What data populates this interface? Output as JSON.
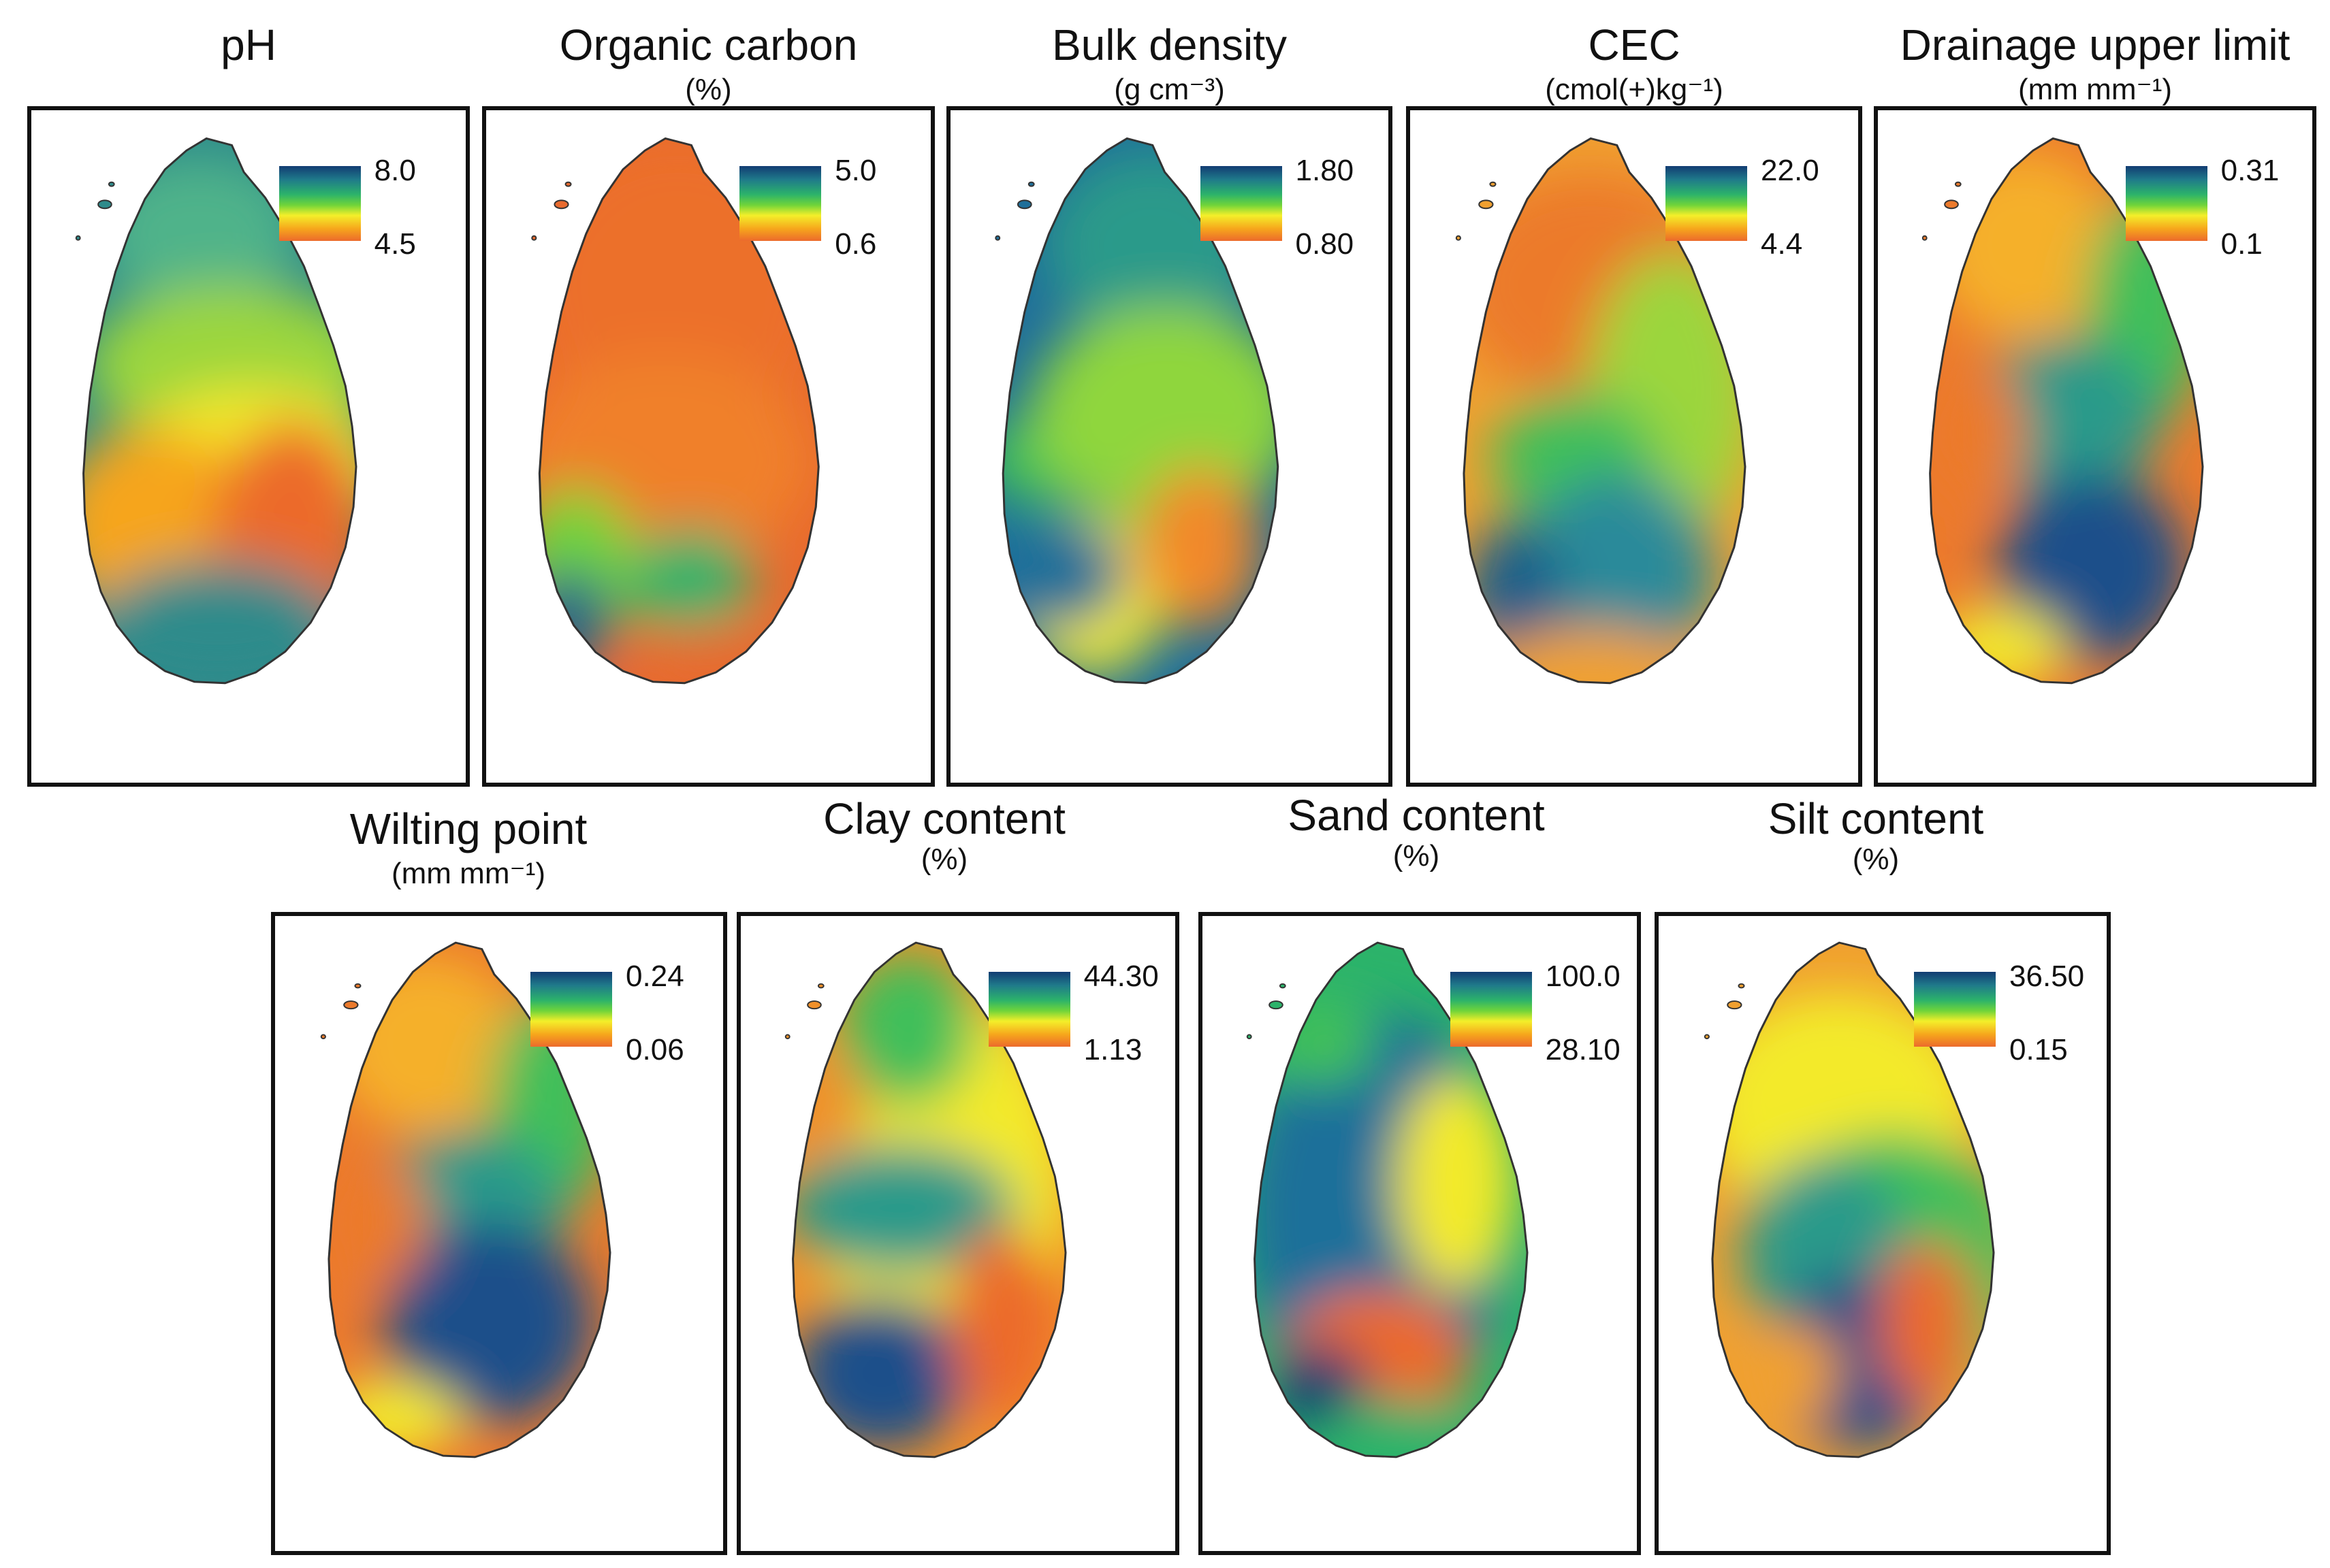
{
  "panels": [
    {
      "id": "ph",
      "title": "pH",
      "unit_text": "",
      "legend_max": "8.0",
      "legend_min": "4.5",
      "palette": [
        "#2e8b8b",
        "#4fb38a",
        "#9bd63d",
        "#f3ea2a",
        "#f6a51c",
        "#ec6a2c"
      ]
    },
    {
      "id": "organic-carbon",
      "title": "Organic carbon",
      "unit_text": "(%)",
      "legend_max": "5.0",
      "legend_min": "0.6",
      "palette": [
        "#e86a2e",
        "#ec6f2c",
        "#f0802a",
        "#6fd43a",
        "#2cb36a",
        "#1f5f8a"
      ]
    },
    {
      "id": "bulk-density",
      "title": "Bulk density",
      "unit_text": "(g cm⁻³)",
      "legend_max": "1.80",
      "legend_min": "0.80",
      "palette": [
        "#1f6f9a",
        "#2a9a8a",
        "#3fbf5a",
        "#8fd63d",
        "#f3ea2a",
        "#f2892a"
      ]
    },
    {
      "id": "cec",
      "title": "CEC",
      "unit_text": "(cmol(+)kg⁻¹)",
      "legend_max": "22.0",
      "legend_min": "4.4",
      "palette": [
        "#f0a030",
        "#ec7a2c",
        "#9bd63d",
        "#3fbf5a",
        "#2a8a9a",
        "#1f5f8a"
      ]
    },
    {
      "id": "drainage-upper-limit",
      "title": "Drainage upper limit",
      "unit_text": "(mm mm⁻¹)",
      "legend_max": "0.31",
      "legend_min": "0.1",
      "palette": [
        "#ec7a2c",
        "#f5b02a",
        "#3fbf5a",
        "#2a9a8a",
        "#1f4f8a",
        "#f3ea2a"
      ]
    },
    {
      "id": "wilting-point",
      "title": "Wilting point",
      "unit_text": "(mm mm⁻¹)",
      "legend_max": "0.24",
      "legend_min": "0.06",
      "palette": [
        "#ec7a2c",
        "#f5b02a",
        "#3fbf5a",
        "#2a9a8a",
        "#1f4f8a",
        "#f3ea2a"
      ]
    },
    {
      "id": "clay-content",
      "title": "Clay content",
      "unit_text": "(%)",
      "legend_max": "44.30",
      "legend_min": "1.13",
      "palette": [
        "#f0902a",
        "#f3ea2a",
        "#3fbf5a",
        "#2a9a8a",
        "#1f4f8a",
        "#ec6a2c"
      ]
    },
    {
      "id": "sand-content",
      "title": "Sand content",
      "unit_text": "(%)",
      "legend_max": "100.0",
      "legend_min": "28.10",
      "palette": [
        "#2cb36a",
        "#1f6f9a",
        "#3fbf5a",
        "#f3ea2a",
        "#ec6a2c",
        "#123c72"
      ]
    },
    {
      "id": "silt-content",
      "title": "Silt content",
      "unit_text": "(%)",
      "legend_max": "36.50",
      "legend_min": "0.15",
      "palette": [
        "#f0a030",
        "#f3ea2a",
        "#3fbf5a",
        "#2a9a8a",
        "#1f4f8a",
        "#ec6a2c"
      ]
    }
  ]
}
